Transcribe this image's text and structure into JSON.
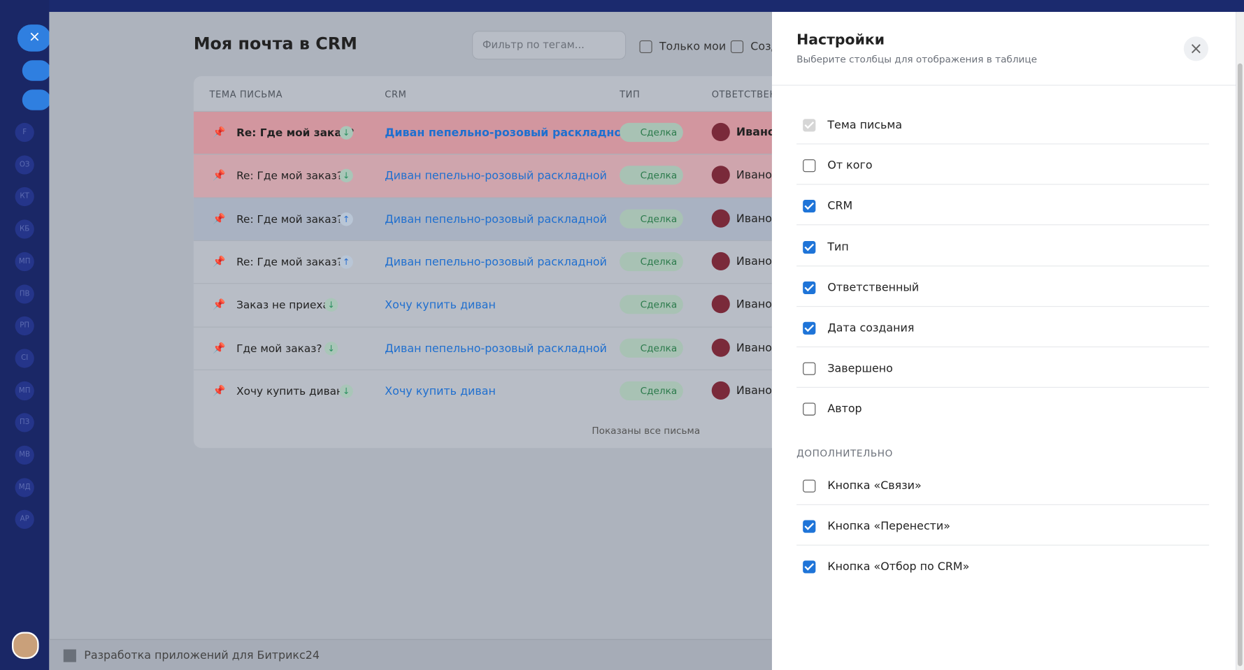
{
  "sidebar": {
    "items": [
      "F",
      "ОЗ",
      "КТ",
      "КБ",
      "МП",
      "ПВ",
      "РП",
      "СI",
      "МП",
      "ПЗ",
      "МВ",
      "МД",
      "АР"
    ]
  },
  "main": {
    "title": "Моя почта в CRM",
    "filter_placeholder": "Фильтр по тегам...",
    "only_mine": "Только мои",
    "created": "Созд",
    "table": {
      "columns": [
        "ТЕМА ПИСЬМА",
        "CRM",
        "ТИП",
        "ОТВЕТСТВЕН"
      ],
      "rows": [
        {
          "subject": "Re: Где мой заказ?",
          "direction": "down",
          "crm": "Диван пепельно-розовый раскладной",
          "type": "Сделка",
          "responsible": "Иванов",
          "unread": true,
          "tint": "pink"
        },
        {
          "subject": "Re: Где мой заказ?",
          "direction": "down",
          "crm": "Диван пепельно-розовый раскладной",
          "type": "Сделка",
          "responsible": "Иванов",
          "unread": false,
          "tint": "pink"
        },
        {
          "subject": "Re: Где мой заказ?",
          "direction": "up",
          "crm": "Диван пепельно-розовый раскладной",
          "type": "Сделка",
          "responsible": "Иванов",
          "unread": false,
          "tint": "blue"
        },
        {
          "subject": "Re: Где мой заказ?",
          "direction": "up",
          "crm": "Диван пепельно-розовый раскладной",
          "type": "Сделка",
          "responsible": "Иванов",
          "unread": false,
          "tint": "none"
        },
        {
          "subject": "Заказ не приехал",
          "direction": "down",
          "crm": "Хочу купить диван",
          "type": "Сделка",
          "responsible": "Иванов",
          "unread": false,
          "tint": "none"
        },
        {
          "subject": "Где мой заказ?",
          "direction": "down",
          "crm": "Диван пепельно-розовый раскладной",
          "type": "Сделка",
          "responsible": "Иванов",
          "unread": false,
          "tint": "none"
        },
        {
          "subject": "Хочу купить диван",
          "direction": "down",
          "crm": "Хочу купить диван",
          "type": "Сделка",
          "responsible": "Иванов",
          "unread": false,
          "tint": "none"
        }
      ],
      "footer": "Показаны все письма"
    }
  },
  "bottom_bar": {
    "text": "Разработка приложений для Битрикс24"
  },
  "settings": {
    "title": "Настройки",
    "subtitle": "Выберите столбцы для отображения в таблице",
    "columns": [
      {
        "label": "Тема письма",
        "checked": true,
        "disabled": true
      },
      {
        "label": "От кого",
        "checked": false,
        "disabled": false
      },
      {
        "label": "CRM",
        "checked": true,
        "disabled": false
      },
      {
        "label": "Тип",
        "checked": true,
        "disabled": false
      },
      {
        "label": "Ответственный",
        "checked": true,
        "disabled": false
      },
      {
        "label": "Дата создания",
        "checked": true,
        "disabled": false
      },
      {
        "label": "Завершено",
        "checked": false,
        "disabled": false
      },
      {
        "label": "Автор",
        "checked": false,
        "disabled": false
      }
    ],
    "extra_title": "ДОПОЛНИТЕЛЬНО",
    "extra": [
      {
        "label": "Кнопка «Связи»",
        "checked": false,
        "disabled": false
      },
      {
        "label": "Кнопка «Перенести»",
        "checked": true,
        "disabled": false
      },
      {
        "label": "Кнопка «Отбор по CRM»",
        "checked": true,
        "disabled": false
      }
    ]
  }
}
